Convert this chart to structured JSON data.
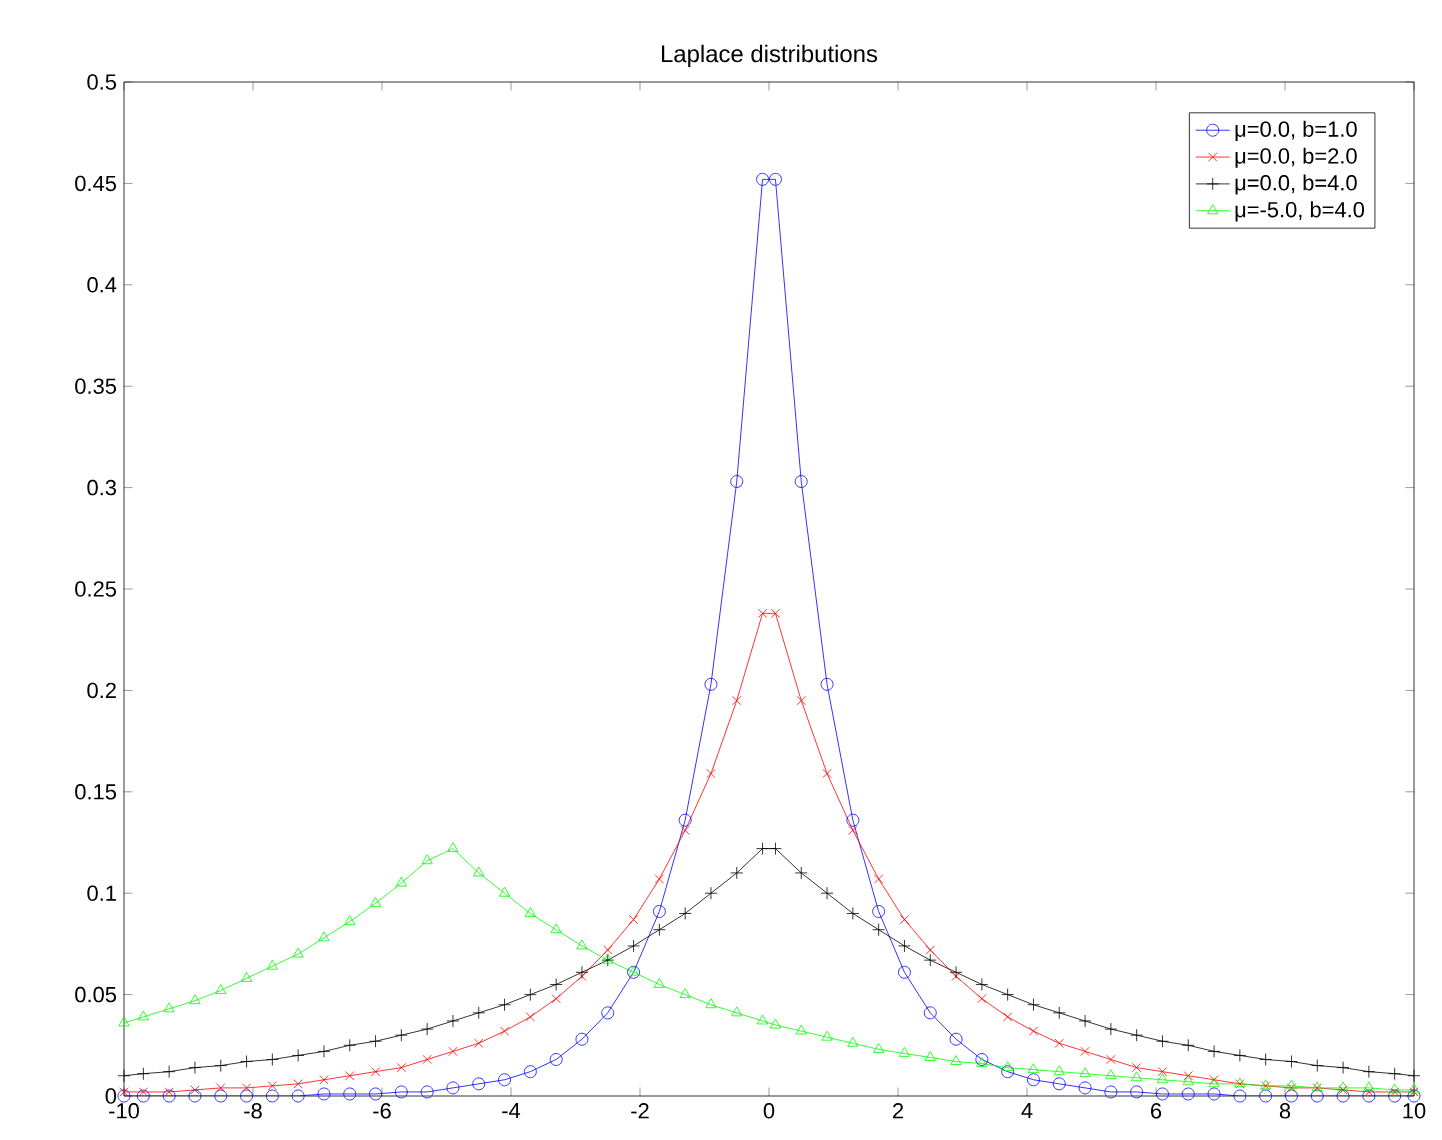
{
  "chart_data": {
    "type": "line",
    "title": "Laplace distributions",
    "x": [
      -10,
      -9.7,
      -9.3,
      -8.9,
      -8.5,
      -8.1,
      -7.7,
      -7.3,
      -6.9,
      -6.5,
      -6.1,
      -5.7,
      -5.3,
      -4.9,
      -4.5,
      -4.1,
      -3.7,
      -3.3,
      -2.9,
      -2.5,
      -2.1,
      -1.7,
      -1.3,
      -0.9,
      -0.5,
      -0.1,
      0.1,
      0.5,
      0.9,
      1.3,
      1.7,
      2.1,
      2.5,
      2.9,
      3.3,
      3.7,
      4.1,
      4.5,
      4.9,
      5.3,
      5.7,
      6.1,
      6.5,
      6.9,
      7.3,
      7.7,
      8.1,
      8.5,
      8.9,
      9.3,
      9.7,
      10
    ],
    "series": [
      {
        "name": "μ=0.0, b=1.0",
        "color": "#0000ff",
        "marker": "circle",
        "values": [
          0,
          0,
          0,
          0,
          0,
          0,
          0,
          0,
          0.001,
          0.001,
          0.001,
          0.002,
          0.002,
          0.004,
          0.006,
          0.008,
          0.012,
          0.018,
          0.028,
          0.041,
          0.061,
          0.091,
          0.136,
          0.203,
          0.303,
          0.452,
          0.452,
          0.303,
          0.203,
          0.136,
          0.091,
          0.061,
          0.041,
          0.028,
          0.018,
          0.012,
          0.008,
          0.006,
          0.004,
          0.002,
          0.002,
          0.001,
          0.001,
          0.001,
          0,
          0,
          0,
          0,
          0,
          0,
          0,
          0
        ]
      },
      {
        "name": "μ=0.0, b=2.0",
        "color": "#ff0000",
        "marker": "cross",
        "values": [
          0.002,
          0.002,
          0.002,
          0.003,
          0.004,
          0.004,
          0.005,
          0.006,
          0.008,
          0.01,
          0.012,
          0.014,
          0.018,
          0.022,
          0.026,
          0.032,
          0.039,
          0.048,
          0.059,
          0.072,
          0.087,
          0.107,
          0.131,
          0.159,
          0.195,
          0.238,
          0.238,
          0.195,
          0.159,
          0.131,
          0.107,
          0.087,
          0.072,
          0.059,
          0.048,
          0.039,
          0.032,
          0.026,
          0.022,
          0.018,
          0.014,
          0.012,
          0.01,
          0.008,
          0.006,
          0.005,
          0.004,
          0.004,
          0.003,
          0.002,
          0.002,
          0.002
        ]
      },
      {
        "name": "μ=0.0, b=4.0",
        "color": "#000000",
        "marker": "plus",
        "values": [
          0.01,
          0.011,
          0.012,
          0.014,
          0.015,
          0.017,
          0.018,
          0.02,
          0.022,
          0.025,
          0.027,
          0.03,
          0.033,
          0.037,
          0.041,
          0.045,
          0.05,
          0.055,
          0.061,
          0.067,
          0.074,
          0.082,
          0.09,
          0.1,
          0.11,
          0.122,
          0.122,
          0.11,
          0.1,
          0.09,
          0.082,
          0.074,
          0.067,
          0.061,
          0.055,
          0.05,
          0.045,
          0.041,
          0.037,
          0.033,
          0.03,
          0.027,
          0.025,
          0.022,
          0.02,
          0.018,
          0.017,
          0.015,
          0.014,
          0.012,
          0.011,
          0.01
        ]
      },
      {
        "name": "μ=-5.0, b=4.0",
        "color": "#00ff00",
        "marker": "triangle",
        "values": [
          0.036,
          0.039,
          0.043,
          0.047,
          0.052,
          0.058,
          0.064,
          0.07,
          0.078,
          0.086,
          0.095,
          0.105,
          0.116,
          0.122,
          0.11,
          0.1,
          0.09,
          0.082,
          0.074,
          0.067,
          0.061,
          0.055,
          0.05,
          0.045,
          0.041,
          0.037,
          0.035,
          0.032,
          0.029,
          0.026,
          0.023,
          0.021,
          0.019,
          0.017,
          0.016,
          0.014,
          0.013,
          0.012,
          0.011,
          0.01,
          0.009,
          0.008,
          0.007,
          0.006,
          0.006,
          0.005,
          0.005,
          0.004,
          0.004,
          0.004,
          0.003,
          0.003
        ]
      }
    ],
    "xlim": [
      -10,
      10
    ],
    "xticks": [
      -10,
      -8,
      -6,
      -4,
      -2,
      0,
      2,
      4,
      6,
      8,
      10
    ],
    "ylim": [
      0,
      0.5
    ],
    "yticks": [
      0,
      0.05,
      0.1,
      0.15,
      0.2,
      0.25,
      0.3,
      0.35,
      0.4,
      0.45,
      0.5
    ],
    "grid": false,
    "legend": "top right",
    "line_style": "solid"
  }
}
